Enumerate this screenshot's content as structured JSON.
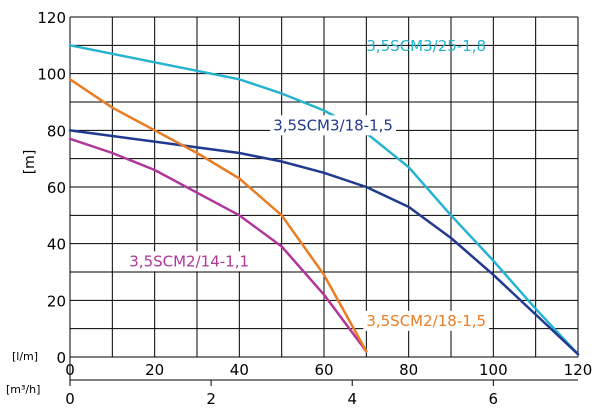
{
  "chart_data": {
    "type": "line",
    "ylabel": "[m]",
    "x_unit_primary": "[l/m]",
    "x_unit_secondary": "[m³/h]",
    "xlim": [
      0,
      120
    ],
    "ylim": [
      0,
      120
    ],
    "x_ticks": [
      0,
      20,
      40,
      60,
      80,
      100,
      120
    ],
    "y_ticks": [
      0,
      20,
      40,
      60,
      80,
      100,
      120
    ],
    "x_secondary_ticks": [
      0,
      2,
      4,
      6
    ],
    "x_secondary_factor": 0.06,
    "grid": true,
    "series": [
      {
        "name": "3,5SCM3/25-1,8",
        "color": "#25b3cf",
        "x": [
          0,
          10,
          20,
          30,
          40,
          50,
          60,
          70,
          80,
          90,
          100,
          110,
          120
        ],
        "y": [
          110,
          107,
          104,
          101,
          98,
          93,
          87,
          79,
          67,
          50,
          34,
          17,
          1
        ]
      },
      {
        "name": "3,5SCM3/18-1,5",
        "color": "#213a8f",
        "x": [
          0,
          10,
          20,
          30,
          40,
          50,
          60,
          70,
          80,
          90,
          100,
          110,
          120
        ],
        "y": [
          80,
          78,
          76,
          74,
          72,
          69,
          65,
          60,
          53,
          42,
          29,
          15,
          1
        ]
      },
      {
        "name": "3,5SCM2/14-1,1",
        "color": "#b0369a",
        "x": [
          0,
          10,
          20,
          30,
          40,
          50,
          60,
          70
        ],
        "y": [
          77,
          72,
          66,
          58,
          50,
          39,
          22,
          2
        ]
      },
      {
        "name": "3,5SCM2/18-1,5",
        "color": "#e87d23",
        "x": [
          0,
          10,
          20,
          30,
          40,
          50,
          60,
          70
        ],
        "y": [
          98,
          88,
          80,
          72,
          63,
          50,
          29,
          2
        ]
      }
    ],
    "annotations": [
      {
        "text": "3,5SCM3/25-1,8",
        "x": 70,
        "y": 108,
        "color": "#25b3cf",
        "anchor": "start",
        "boxed": false
      },
      {
        "text": "3,5SCM3/18-1,5",
        "x": 48,
        "y": 80,
        "color": "#213a8f",
        "anchor": "start",
        "boxed": true
      },
      {
        "text": "3,5SCM2/14-1,1",
        "x": 14,
        "y": 32,
        "color": "#b0369a",
        "anchor": "start",
        "boxed": true
      },
      {
        "text": "3,5SCM2/18-1,5",
        "x": 70,
        "y": 11,
        "color": "#e87d23",
        "anchor": "start",
        "boxed": true
      }
    ]
  }
}
